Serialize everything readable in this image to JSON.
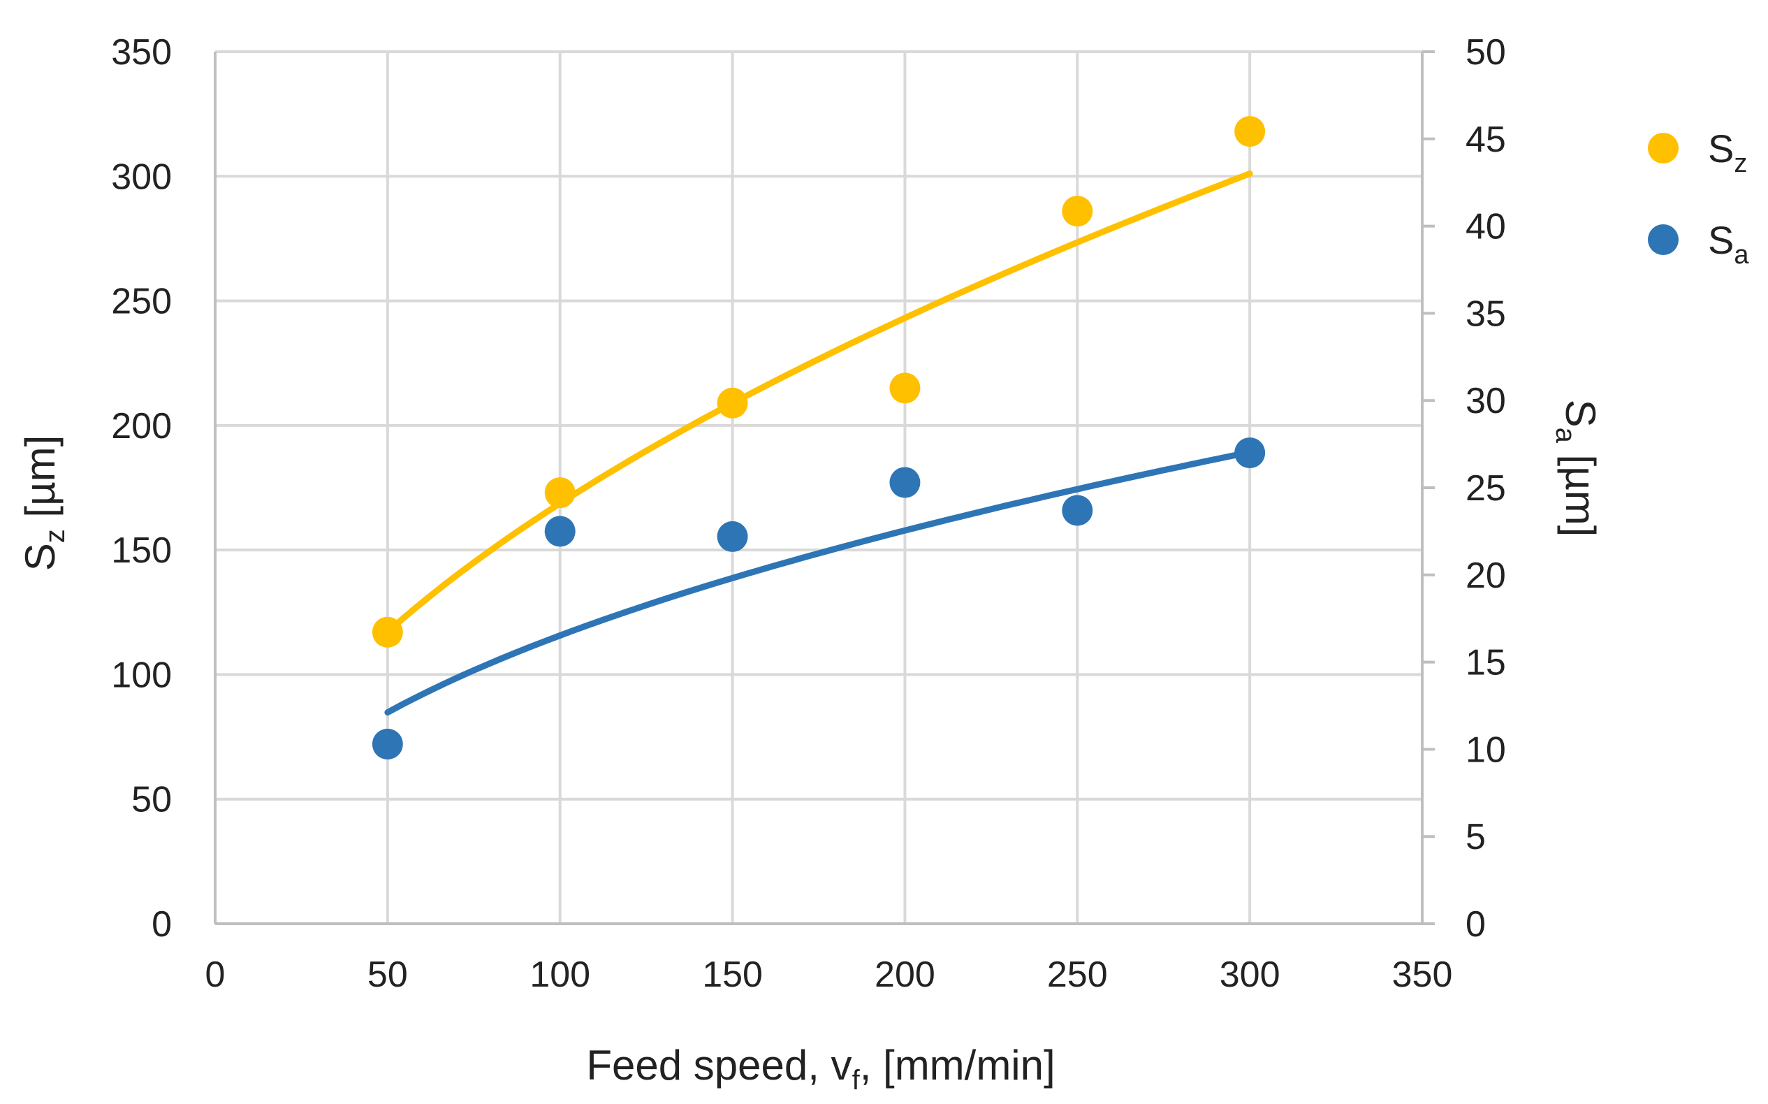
{
  "chart_data": {
    "type": "scatter",
    "x": [
      50,
      100,
      150,
      200,
      250,
      300
    ],
    "xlim": [
      0,
      350
    ],
    "xticks": [
      0,
      50,
      100,
      150,
      200,
      250,
      300,
      350
    ],
    "xlabel": {
      "main": "Feed speed, v",
      "sub": "f",
      "rest": ", [mm/min]"
    },
    "ylim_left": [
      0,
      350
    ],
    "yticks_left": [
      0,
      50,
      100,
      150,
      200,
      250,
      300,
      350
    ],
    "ylabel_left": {
      "main": "S",
      "sub": "z",
      "rest": " [µm]"
    },
    "ylim_right": [
      0,
      50
    ],
    "yticks_right": [
      0,
      5,
      10,
      15,
      20,
      25,
      30,
      35,
      40,
      45,
      50
    ],
    "ylabel_right": {
      "main": "S",
      "sub": "a",
      "rest": " [µm]"
    },
    "grid": true,
    "legend_position": "right",
    "series": [
      {
        "name": "Sz",
        "label_main": "S",
        "label_sub": "z",
        "axis": "left",
        "color": "#FFC000",
        "values": [
          117,
          173,
          209,
          215,
          286,
          318
        ],
        "trend": {
          "type": "power",
          "a": 14.9,
          "b": 0.527,
          "x_from": 50,
          "x_to": 300
        }
      },
      {
        "name": "Sa",
        "label_main": "S",
        "label_sub": "a",
        "axis": "right",
        "color": "#2E75B6",
        "values": [
          10.3,
          22.5,
          22.2,
          25.3,
          23.7,
          27.0
        ],
        "trend": {
          "type": "power",
          "a": 2.1,
          "b": 0.448,
          "x_from": 50,
          "x_to": 300
        }
      }
    ]
  }
}
